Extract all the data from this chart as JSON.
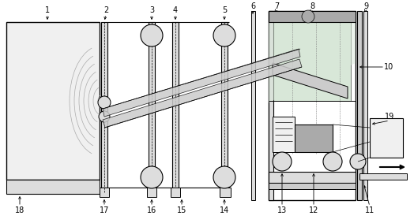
{
  "bg_color": "#ffffff",
  "lc": "#000000",
  "gray1": "#f0f0f0",
  "gray2": "#dddddd",
  "gray3": "#cccccc",
  "gray4": "#aaaaaa",
  "gray5": "#888888",
  "green_fill": "#c8ddc8",
  "green_fill2": "#d8e8d8"
}
